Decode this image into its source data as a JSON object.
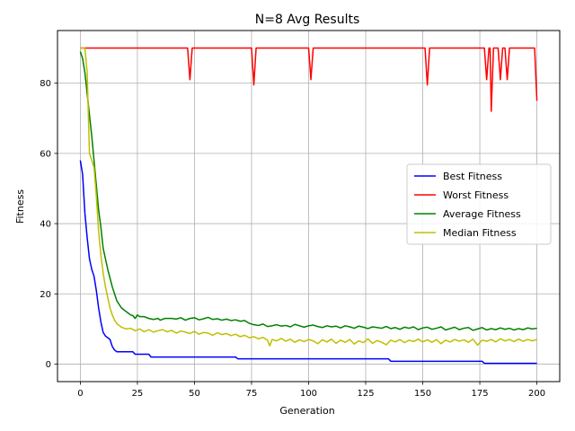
{
  "chart_data": {
    "type": "line",
    "title": "N=8 Avg Results",
    "xlabel": "Generation",
    "ylabel": "Fitness",
    "xlim": [
      -10,
      210
    ],
    "ylim": [
      -5,
      95
    ],
    "xticks": [
      0,
      25,
      50,
      75,
      100,
      125,
      150,
      175,
      200
    ],
    "yticks": [
      0,
      20,
      40,
      60,
      80
    ],
    "grid": true,
    "legend_position": "center-right",
    "series": [
      {
        "name": "Best Fitness",
        "color": "#0000ff",
        "points": [
          [
            0,
            58
          ],
          [
            1,
            54
          ],
          [
            2,
            43
          ],
          [
            3,
            36
          ],
          [
            4,
            30
          ],
          [
            5,
            27
          ],
          [
            6,
            25
          ],
          [
            7,
            21
          ],
          [
            8,
            16
          ],
          [
            9,
            12
          ],
          [
            10,
            9
          ],
          [
            11,
            8
          ],
          [
            12,
            7.5
          ],
          [
            13,
            7
          ],
          [
            14,
            5
          ],
          [
            15,
            4
          ],
          [
            16,
            3.5
          ],
          [
            17,
            3.5
          ],
          [
            20,
            3.5
          ],
          [
            22,
            3.5
          ],
          [
            23,
            3.5
          ],
          [
            24,
            2.8
          ],
          [
            25,
            2.8
          ],
          [
            29,
            2.8
          ],
          [
            30,
            2.8
          ],
          [
            31,
            2
          ],
          [
            40,
            2
          ],
          [
            50,
            2
          ],
          [
            60,
            2
          ],
          [
            68,
            2
          ],
          [
            69,
            1.5
          ],
          [
            80,
            1.5
          ],
          [
            100,
            1.5
          ],
          [
            120,
            1.5
          ],
          [
            135,
            1.5
          ],
          [
            136,
            0.8
          ],
          [
            150,
            0.8
          ],
          [
            170,
            0.8
          ],
          [
            176,
            0.8
          ],
          [
            177,
            0.2
          ],
          [
            190,
            0.2
          ],
          [
            200,
            0.2
          ]
        ]
      },
      {
        "name": "Worst Fitness",
        "color": "#ff0000",
        "points": [
          [
            0,
            90
          ],
          [
            47,
            90
          ],
          [
            48,
            81
          ],
          [
            49,
            90
          ],
          [
            75,
            90
          ],
          [
            76,
            79.5
          ],
          [
            77,
            90
          ],
          [
            100,
            90
          ],
          [
            101,
            81
          ],
          [
            102,
            90
          ],
          [
            151,
            90
          ],
          [
            152,
            79.5
          ],
          [
            153,
            90
          ],
          [
            177,
            90
          ],
          [
            178,
            81
          ],
          [
            179,
            90
          ],
          [
            179.5,
            90
          ],
          [
            180,
            72
          ],
          [
            181,
            90
          ],
          [
            183,
            90
          ],
          [
            184,
            81
          ],
          [
            185,
            90
          ],
          [
            186,
            90
          ],
          [
            187,
            81
          ],
          [
            188,
            90
          ],
          [
            199,
            90
          ],
          [
            200,
            75
          ]
        ]
      },
      {
        "name": "Average Fitness",
        "color": "#008000",
        "points": [
          [
            0,
            89
          ],
          [
            1,
            87
          ],
          [
            2,
            83
          ],
          [
            3,
            77
          ],
          [
            4,
            71
          ],
          [
            5,
            65
          ],
          [
            6,
            58
          ],
          [
            7,
            51
          ],
          [
            8,
            44
          ],
          [
            9,
            39
          ],
          [
            10,
            33
          ],
          [
            11,
            30
          ],
          [
            12,
            27
          ],
          [
            13,
            24.5
          ],
          [
            14,
            22
          ],
          [
            15,
            20
          ],
          [
            16,
            18
          ],
          [
            17,
            17
          ],
          [
            18,
            16
          ],
          [
            19,
            15.5
          ],
          [
            20,
            15
          ],
          [
            21,
            14.5
          ],
          [
            22,
            14
          ],
          [
            23,
            13.8
          ],
          [
            24,
            13
          ],
          [
            25,
            14
          ],
          [
            26,
            13.5
          ],
          [
            28,
            13.5
          ],
          [
            30,
            13
          ],
          [
            32,
            12.7
          ],
          [
            34,
            13
          ],
          [
            35,
            12.5
          ],
          [
            37,
            13
          ],
          [
            40,
            13
          ],
          [
            42,
            12.8
          ],
          [
            44,
            13.2
          ],
          [
            46,
            12.5
          ],
          [
            48,
            13
          ],
          [
            50,
            13.2
          ],
          [
            52,
            12.6
          ],
          [
            54,
            12.9
          ],
          [
            56,
            13.3
          ],
          [
            58,
            12.7
          ],
          [
            60,
            12.9
          ],
          [
            62,
            12.5
          ],
          [
            64,
            12.8
          ],
          [
            66,
            12.4
          ],
          [
            68,
            12.6
          ],
          [
            70,
            12.2
          ],
          [
            72,
            12.4
          ],
          [
            74,
            11.6
          ],
          [
            76,
            11.2
          ],
          [
            78,
            11
          ],
          [
            80,
            11.4
          ],
          [
            82,
            10.7
          ],
          [
            84,
            10.9
          ],
          [
            86,
            11.2
          ],
          [
            88,
            10.8
          ],
          [
            90,
            11
          ],
          [
            92,
            10.6
          ],
          [
            94,
            11.3
          ],
          [
            96,
            10.9
          ],
          [
            98,
            10.5
          ],
          [
            100,
            10.9
          ],
          [
            102,
            11.1
          ],
          [
            104,
            10.7
          ],
          [
            106,
            10.4
          ],
          [
            108,
            10.9
          ],
          [
            110,
            10.6
          ],
          [
            112,
            10.8
          ],
          [
            114,
            10.3
          ],
          [
            116,
            10.9
          ],
          [
            118,
            10.6
          ],
          [
            120,
            10.2
          ],
          [
            122,
            10.8
          ],
          [
            124,
            10.5
          ],
          [
            126,
            10.1
          ],
          [
            128,
            10.6
          ],
          [
            130,
            10.4
          ],
          [
            132,
            10.2
          ],
          [
            134,
            10.7
          ],
          [
            136,
            10.1
          ],
          [
            138,
            10.4
          ],
          [
            140,
            9.9
          ],
          [
            142,
            10.5
          ],
          [
            144,
            10.2
          ],
          [
            146,
            10.6
          ],
          [
            148,
            9.8
          ],
          [
            150,
            10.3
          ],
          [
            152,
            10.5
          ],
          [
            154,
            9.9
          ],
          [
            156,
            10.2
          ],
          [
            158,
            10.6
          ],
          [
            160,
            9.7
          ],
          [
            162,
            10.1
          ],
          [
            164,
            10.5
          ],
          [
            166,
            9.8
          ],
          [
            168,
            10.2
          ],
          [
            170,
            10.4
          ],
          [
            172,
            9.6
          ],
          [
            174,
            10
          ],
          [
            176,
            10.4
          ],
          [
            178,
            9.7
          ],
          [
            180,
            10.1
          ],
          [
            182,
            9.8
          ],
          [
            184,
            10.3
          ],
          [
            186,
            9.9
          ],
          [
            188,
            10.2
          ],
          [
            190,
            9.7
          ],
          [
            192,
            10.1
          ],
          [
            194,
            9.8
          ],
          [
            196,
            10.3
          ],
          [
            198,
            10
          ],
          [
            200,
            10.2
          ]
        ]
      },
      {
        "name": "Median Fitness",
        "color": "#bfbf00",
        "points": [
          [
            0,
            90
          ],
          [
            1,
            90
          ],
          [
            2,
            90
          ],
          [
            3,
            83
          ],
          [
            4,
            60
          ],
          [
            5,
            58
          ],
          [
            6,
            56
          ],
          [
            7,
            48
          ],
          [
            8,
            38
          ],
          [
            9,
            31
          ],
          [
            10,
            26
          ],
          [
            11,
            22
          ],
          [
            12,
            19
          ],
          [
            13,
            16
          ],
          [
            14,
            14
          ],
          [
            15,
            12.5
          ],
          [
            16,
            11.5
          ],
          [
            17,
            11
          ],
          [
            18,
            10.5
          ],
          [
            20,
            10
          ],
          [
            22,
            10.2
          ],
          [
            24,
            9.5
          ],
          [
            26,
            10
          ],
          [
            28,
            9.2
          ],
          [
            30,
            9.8
          ],
          [
            32,
            9.1
          ],
          [
            34,
            9.5
          ],
          [
            36,
            9.8
          ],
          [
            38,
            9.2
          ],
          [
            40,
            9.6
          ],
          [
            42,
            8.8
          ],
          [
            44,
            9.4
          ],
          [
            46,
            9.1
          ],
          [
            48,
            8.7
          ],
          [
            50,
            9.3
          ],
          [
            52,
            8.5
          ],
          [
            54,
            9
          ],
          [
            56,
            8.8
          ],
          [
            58,
            8.2
          ],
          [
            60,
            8.9
          ],
          [
            62,
            8.4
          ],
          [
            64,
            8.7
          ],
          [
            66,
            8.1
          ],
          [
            68,
            8.5
          ],
          [
            70,
            7.8
          ],
          [
            72,
            8.2
          ],
          [
            74,
            7.5
          ],
          [
            76,
            7.8
          ],
          [
            78,
            7.2
          ],
          [
            80,
            7.6
          ],
          [
            82,
            6.8
          ],
          [
            83,
            5.2
          ],
          [
            84,
            7
          ],
          [
            86,
            6.6
          ],
          [
            88,
            7.3
          ],
          [
            90,
            6.5
          ],
          [
            92,
            7.1
          ],
          [
            94,
            6.2
          ],
          [
            96,
            6.9
          ],
          [
            98,
            6.4
          ],
          [
            100,
            7
          ],
          [
            102,
            6.6
          ],
          [
            104,
            5.8
          ],
          [
            106,
            6.9
          ],
          [
            108,
            6.3
          ],
          [
            110,
            7.1
          ],
          [
            112,
            5.9
          ],
          [
            114,
            6.8
          ],
          [
            116,
            6.2
          ],
          [
            118,
            7
          ],
          [
            120,
            5.7
          ],
          [
            122,
            6.6
          ],
          [
            124,
            6.1
          ],
          [
            126,
            7.2
          ],
          [
            128,
            5.9
          ],
          [
            130,
            6.7
          ],
          [
            132,
            6.2
          ],
          [
            134,
            5.5
          ],
          [
            136,
            6.8
          ],
          [
            138,
            6.3
          ],
          [
            140,
            7
          ],
          [
            142,
            6.1
          ],
          [
            144,
            6.8
          ],
          [
            146,
            6.4
          ],
          [
            148,
            7.1
          ],
          [
            150,
            6.3
          ],
          [
            152,
            6.9
          ],
          [
            154,
            6.2
          ],
          [
            156,
            7
          ],
          [
            158,
            5.8
          ],
          [
            160,
            6.8
          ],
          [
            162,
            6.3
          ],
          [
            164,
            7
          ],
          [
            166,
            6.5
          ],
          [
            168,
            6.9
          ],
          [
            170,
            6.2
          ],
          [
            172,
            7.1
          ],
          [
            174,
            5.4
          ],
          [
            176,
            6.8
          ],
          [
            178,
            6.5
          ],
          [
            180,
            7
          ],
          [
            182,
            6.3
          ],
          [
            184,
            7.2
          ],
          [
            186,
            6.6
          ],
          [
            188,
            7
          ],
          [
            190,
            6.4
          ],
          [
            192,
            7.1
          ],
          [
            194,
            6.5
          ],
          [
            196,
            7
          ],
          [
            198,
            6.6
          ],
          [
            200,
            7
          ]
        ]
      }
    ]
  }
}
